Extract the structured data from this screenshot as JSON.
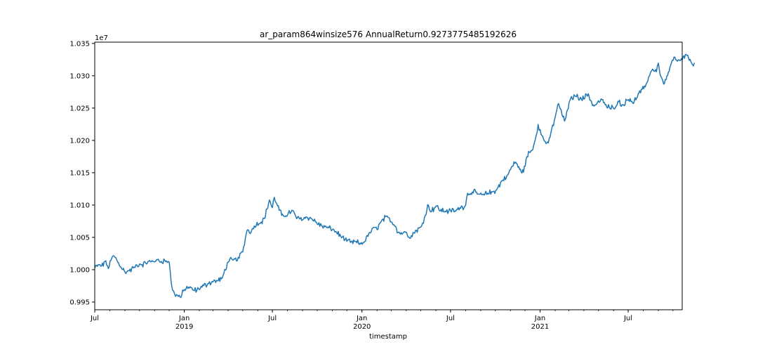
{
  "chart_data": {
    "type": "line",
    "title": "ar_param864winsize576 AnnualReturn0.9273775485192626",
    "xlabel": "timestamp",
    "ylabel": "",
    "offset_label": "1e7",
    "xlim": [
      "2018-07-01",
      "2021-10-20"
    ],
    "ylim": [
      0.9938,
      1.0352
    ],
    "yticks": [
      0.995,
      1.0,
      1.005,
      1.01,
      1.015,
      1.02,
      1.025,
      1.03,
      1.035
    ],
    "ytick_labels": [
      "0.995",
      "1.000",
      "1.005",
      "1.010",
      "1.015",
      "1.020",
      "1.025",
      "1.030",
      "1.035"
    ],
    "xticks_major": [
      {
        "x": "2018-07-01",
        "label": "Jul",
        "sublabel": ""
      },
      {
        "x": "2019-01-01",
        "label": "Jan",
        "sublabel": "2019"
      },
      {
        "x": "2019-07-01",
        "label": "Jul",
        "sublabel": ""
      },
      {
        "x": "2020-01-01",
        "label": "Jan",
        "sublabel": "2020"
      },
      {
        "x": "2020-07-01",
        "label": "Jul",
        "sublabel": ""
      },
      {
        "x": "2021-01-01",
        "label": "Jan",
        "sublabel": "2021"
      },
      {
        "x": "2021-07-01",
        "label": "Jul",
        "sublabel": ""
      }
    ],
    "grid": false,
    "series": [
      {
        "color": "#1f77b4",
        "points": [
          [
            "2018-07-01",
            1.0003
          ],
          [
            "2018-07-08",
            1.0007
          ],
          [
            "2018-07-15",
            1.0005
          ],
          [
            "2018-07-22",
            1.0013
          ],
          [
            "2018-07-29",
            1.0002
          ],
          [
            "2018-08-05",
            1.0017
          ],
          [
            "2018-08-10",
            1.0022
          ],
          [
            "2018-08-17",
            1.0012
          ],
          [
            "2018-08-24",
            1.0005
          ],
          [
            "2018-09-01",
            0.9996
          ],
          [
            "2018-09-10",
            0.9998
          ],
          [
            "2018-09-20",
            1.0004
          ],
          [
            "2018-10-01",
            1.0008
          ],
          [
            "2018-10-15",
            1.001
          ],
          [
            "2018-10-25",
            1.0013
          ],
          [
            "2018-11-05",
            1.0015
          ],
          [
            "2018-11-15",
            1.0013
          ],
          [
            "2018-11-25",
            1.0014
          ],
          [
            "2018-12-01",
            1.0012
          ],
          [
            "2018-12-05",
            0.998
          ],
          [
            "2018-12-08",
            0.9968
          ],
          [
            "2018-12-12",
            0.9962
          ],
          [
            "2018-12-18",
            0.996
          ],
          [
            "2018-12-25",
            0.9957
          ],
          [
            "2019-01-01",
            0.997
          ],
          [
            "2019-01-10",
            0.9972
          ],
          [
            "2019-01-20",
            0.9968
          ],
          [
            "2019-02-01",
            0.997
          ],
          [
            "2019-02-10",
            0.9976
          ],
          [
            "2019-02-20",
            0.9979
          ],
          [
            "2019-03-01",
            0.9982
          ],
          [
            "2019-03-10",
            0.9983
          ],
          [
            "2019-03-20",
            0.9987
          ],
          [
            "2019-04-01",
            1.0013
          ],
          [
            "2019-04-10",
            1.0015
          ],
          [
            "2019-04-20",
            1.0015
          ],
          [
            "2019-05-01",
            1.0028
          ],
          [
            "2019-05-10",
            1.0062
          ],
          [
            "2019-05-18",
            1.0058
          ],
          [
            "2019-05-25",
            1.0068
          ],
          [
            "2019-06-05",
            1.0072
          ],
          [
            "2019-06-15",
            1.008
          ],
          [
            "2019-06-25",
            1.0108
          ],
          [
            "2019-07-01",
            1.0095
          ],
          [
            "2019-07-05",
            1.0112
          ],
          [
            "2019-07-10",
            1.0102
          ],
          [
            "2019-07-15",
            1.0092
          ],
          [
            "2019-07-20",
            1.0085
          ],
          [
            "2019-08-01",
            1.0085
          ],
          [
            "2019-08-10",
            1.0092
          ],
          [
            "2019-08-20",
            1.008
          ],
          [
            "2019-09-01",
            1.0078
          ],
          [
            "2019-09-10",
            1.0082
          ],
          [
            "2019-09-20",
            1.0078
          ],
          [
            "2019-10-01",
            1.0072
          ],
          [
            "2019-10-10",
            1.0068
          ],
          [
            "2019-10-20",
            1.0065
          ],
          [
            "2019-11-01",
            1.0062
          ],
          [
            "2019-11-10",
            1.0058
          ],
          [
            "2019-11-20",
            1.005
          ],
          [
            "2019-12-01",
            1.0045
          ],
          [
            "2019-12-10",
            1.0043
          ],
          [
            "2019-12-20",
            1.0043
          ],
          [
            "2019-12-28",
            1.004
          ],
          [
            "2020-01-05",
            1.0042
          ],
          [
            "2020-01-15",
            1.0055
          ],
          [
            "2020-01-25",
            1.0065
          ],
          [
            "2020-02-01",
            1.0063
          ],
          [
            "2020-02-10",
            1.0075
          ],
          [
            "2020-02-20",
            1.0082
          ],
          [
            "2020-03-01",
            1.0075
          ],
          [
            "2020-03-10",
            1.0068
          ],
          [
            "2020-03-15",
            1.0058
          ],
          [
            "2020-03-25",
            1.0056
          ],
          [
            "2020-04-01",
            1.0058
          ],
          [
            "2020-04-10",
            1.005
          ],
          [
            "2020-04-20",
            1.006
          ],
          [
            "2020-05-01",
            1.0065
          ],
          [
            "2020-05-10",
            1.0085
          ],
          [
            "2020-05-15",
            1.01
          ],
          [
            "2020-05-20",
            1.009
          ],
          [
            "2020-06-01",
            1.0098
          ],
          [
            "2020-06-10",
            1.0092
          ],
          [
            "2020-06-20",
            1.009
          ],
          [
            "2020-07-01",
            1.0092
          ],
          [
            "2020-07-10",
            1.009
          ],
          [
            "2020-07-20",
            1.0095
          ],
          [
            "2020-08-01",
            1.01
          ],
          [
            "2020-08-05",
            1.0118
          ],
          [
            "2020-08-15",
            1.012
          ],
          [
            "2020-08-25",
            1.0118
          ],
          [
            "2020-09-05",
            1.0115
          ],
          [
            "2020-09-15",
            1.0118
          ],
          [
            "2020-09-25",
            1.012
          ],
          [
            "2020-10-05",
            1.0125
          ],
          [
            "2020-10-15",
            1.0138
          ],
          [
            "2020-10-25",
            1.0145
          ],
          [
            "2020-11-05",
            1.016
          ],
          [
            "2020-11-12",
            1.0167
          ],
          [
            "2020-11-20",
            1.0155
          ],
          [
            "2020-11-28",
            1.0152
          ],
          [
            "2020-12-05",
            1.0175
          ],
          [
            "2020-12-10",
            1.0182
          ],
          [
            "2020-12-15",
            1.0185
          ],
          [
            "2020-12-22",
            1.02
          ],
          [
            "2020-12-28",
            1.0225
          ],
          [
            "2021-01-03",
            1.021
          ],
          [
            "2021-01-10",
            1.02
          ],
          [
            "2021-01-18",
            1.0195
          ],
          [
            "2021-01-25",
            1.0218
          ],
          [
            "2021-02-01",
            1.0235
          ],
          [
            "2021-02-08",
            1.0258
          ],
          [
            "2021-02-15",
            1.024
          ],
          [
            "2021-02-20",
            1.023
          ],
          [
            "2021-02-28",
            1.025
          ],
          [
            "2021-03-05",
            1.0266
          ],
          [
            "2021-03-15",
            1.0268
          ],
          [
            "2021-03-25",
            1.0266
          ],
          [
            "2021-04-01",
            1.0265
          ],
          [
            "2021-04-10",
            1.0272
          ],
          [
            "2021-04-15",
            1.0262
          ],
          [
            "2021-04-22",
            1.0252
          ],
          [
            "2021-05-01",
            1.026
          ],
          [
            "2021-05-10",
            1.0262
          ],
          [
            "2021-05-18",
            1.0252
          ],
          [
            "2021-05-25",
            1.025
          ],
          [
            "2021-06-01",
            1.025
          ],
          [
            "2021-06-10",
            1.026
          ],
          [
            "2021-06-20",
            1.0255
          ],
          [
            "2021-06-28",
            1.0262
          ],
          [
            "2021-07-05",
            1.0265
          ],
          [
            "2021-07-12",
            1.0258
          ],
          [
            "2021-07-20",
            1.0268
          ],
          [
            "2021-07-28",
            1.0278
          ],
          [
            "2021-08-05",
            1.0282
          ],
          [
            "2021-08-12",
            1.0298
          ],
          [
            "2021-08-20",
            1.031
          ],
          [
            "2021-08-28",
            1.0307
          ],
          [
            "2021-09-01",
            1.032
          ],
          [
            "2021-09-06",
            1.03
          ],
          [
            "2021-09-12",
            1.0288
          ],
          [
            "2021-09-20",
            1.03
          ],
          [
            "2021-09-28",
            1.032
          ],
          [
            "2021-10-05",
            1.0328
          ],
          [
            "2021-10-10",
            1.0322
          ],
          [
            "2021-10-20",
            1.0325
          ],
          [
            "2021-10-28",
            1.0333
          ],
          [
            "2021-11-05",
            1.0325
          ],
          [
            "2021-11-10",
            1.0318
          ],
          [
            "2021-11-14",
            1.032
          ]
        ]
      }
    ]
  }
}
